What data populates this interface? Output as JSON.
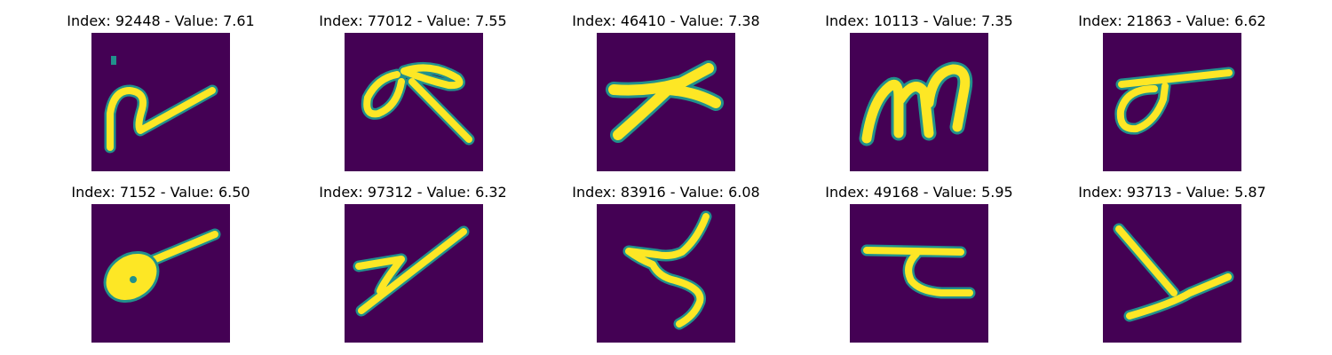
{
  "colors": {
    "background": "#440154",
    "edge": "#21918c",
    "stroke": "#fde725"
  },
  "panels": [
    {
      "title": "Index: 92448 - Value: 7.61"
    },
    {
      "title": "Index: 77012 - Value: 7.55"
    },
    {
      "title": "Index: 46410 - Value: 7.38"
    },
    {
      "title": "Index: 10113 - Value: 7.35"
    },
    {
      "title": "Index: 21863 - Value: 6.62"
    },
    {
      "title": "Index: 7152 - Value: 6.50"
    },
    {
      "title": "Index: 97312 - Value: 6.32"
    },
    {
      "title": "Index: 83916 - Value: 6.08"
    },
    {
      "title": "Index: 49168 - Value: 5.95"
    },
    {
      "title": "Index: 93713 - Value: 5.87"
    }
  ]
}
